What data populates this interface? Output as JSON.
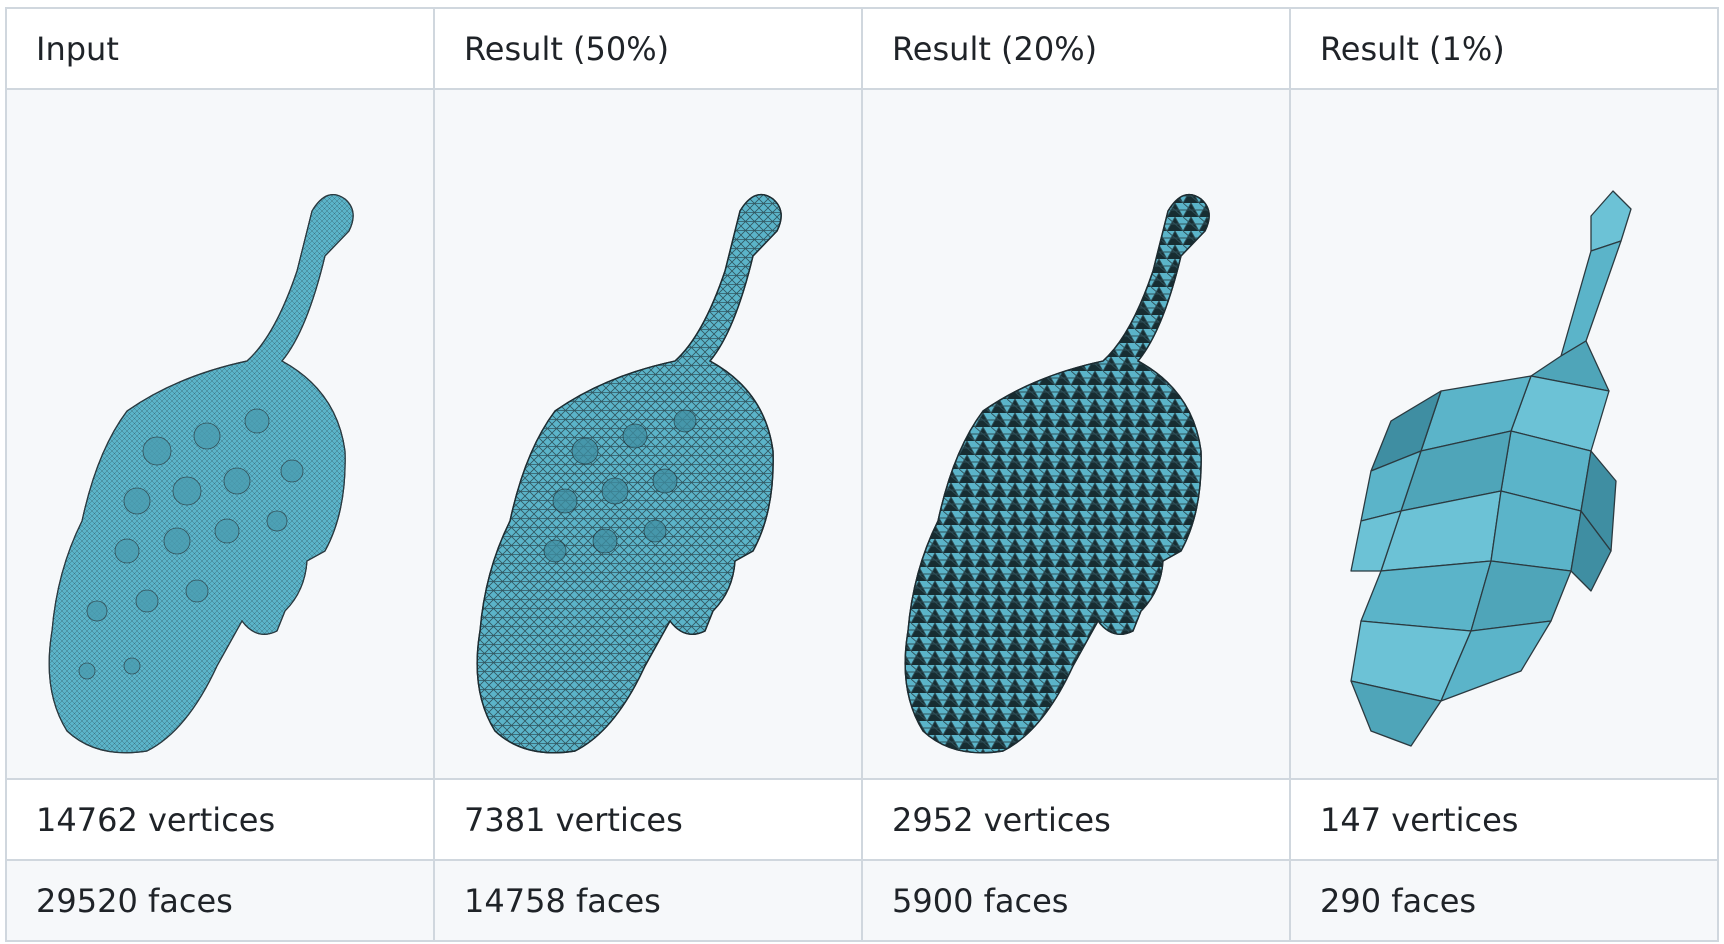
{
  "columns": [
    {
      "header": "Input",
      "vertices": "14762 vertices",
      "faces": "29520 faces",
      "icon": "ankylosaurus-mesh-dense"
    },
    {
      "header": "Result (50%)",
      "vertices": "7381 vertices",
      "faces": "14758 faces",
      "icon": "ankylosaurus-mesh-50"
    },
    {
      "header": "Result (20%)",
      "vertices": "2952 vertices",
      "faces": "5900 faces",
      "icon": "ankylosaurus-mesh-20"
    },
    {
      "header": "Result (1%)",
      "vertices": "147 vertices",
      "faces": "290 faces",
      "icon": "ankylosaurus-mesh-1"
    }
  ],
  "colors": {
    "mesh_fill": "#5bb4c9",
    "mesh_wire": "#2b3a40",
    "border": "#d0d7de",
    "alt_row": "#f6f8fa",
    "text": "#1f2328"
  }
}
